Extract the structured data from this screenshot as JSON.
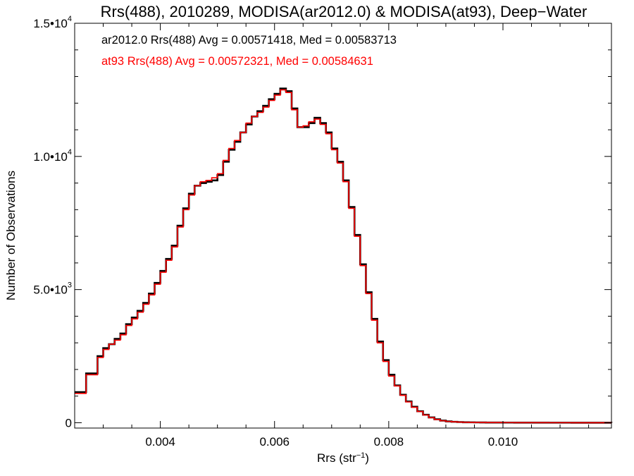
{
  "chart_data": {
    "type": "line",
    "step": true,
    "title": "Rrs(488), 2010289, MODISA(ar2012.0) & MODISA(at93), Deep−Water",
    "xlabel_main": "Rrs (str",
    "xlabel_sup": "−1",
    "xlabel_end": ")",
    "ylabel": "Number of Observations",
    "xlim": [
      0.0025,
      0.0119
    ],
    "ylim": [
      -200,
      15000
    ],
    "x_ticks": [
      {
        "value": 0.004,
        "label": "0.004"
      },
      {
        "value": 0.006,
        "label": "0.006"
      },
      {
        "value": 0.008,
        "label": "0.008"
      },
      {
        "value": 0.01,
        "label": "0.010"
      }
    ],
    "y_ticks": [
      {
        "value": 0,
        "mant": "0",
        "exp": ""
      },
      {
        "value": 5000,
        "mant": "5.0•10",
        "exp": "3"
      },
      {
        "value": 10000,
        "mant": "1.0•10",
        "exp": "4"
      },
      {
        "value": 15000,
        "mant": "1.5•10",
        "exp": "4"
      }
    ],
    "annotations": [
      {
        "text": "ar2012.0 Rrs(488) Avg = 0.00571418, Med = 0.00583713",
        "color": "#000000"
      },
      {
        "text": "at93 Rrs(488) Avg = 0.00572321, Med = 0.00584631",
        "color": "#ff0000"
      }
    ],
    "series": [
      {
        "name": "ar2012.0",
        "color": "#000000",
        "x": [
          0.0025,
          0.0027,
          0.0029,
          0.003,
          0.0031,
          0.0032,
          0.0033,
          0.0034,
          0.0035,
          0.0036,
          0.0037,
          0.0038,
          0.0039,
          0.004,
          0.0041,
          0.0042,
          0.0043,
          0.0044,
          0.0045,
          0.0046,
          0.0047,
          0.0048,
          0.0049,
          0.005,
          0.0051,
          0.0052,
          0.0053,
          0.0054,
          0.0055,
          0.0056,
          0.0057,
          0.0058,
          0.0059,
          0.006,
          0.0061,
          0.0062,
          0.0063,
          0.0064,
          0.0065,
          0.0066,
          0.0067,
          0.0068,
          0.0069,
          0.007,
          0.0071,
          0.0072,
          0.0073,
          0.0074,
          0.0075,
          0.0076,
          0.0077,
          0.0078,
          0.0079,
          0.008,
          0.0081,
          0.0082,
          0.0083,
          0.0084,
          0.0085,
          0.0086,
          0.0087,
          0.0088,
          0.0089,
          0.009,
          0.0091,
          0.0092,
          0.0093,
          0.0094,
          0.0095,
          0.0096,
          0.0097,
          0.0098,
          0.01,
          0.0102,
          0.0104,
          0.0106,
          0.0108,
          0.011,
          0.0112,
          0.0114,
          0.0116,
          0.0118,
          0.0119
        ],
        "y": [
          1150,
          1850,
          2500,
          2800,
          2950,
          3150,
          3350,
          3700,
          3950,
          4200,
          4500,
          4850,
          5250,
          5700,
          6150,
          6650,
          7400,
          8050,
          8600,
          8900,
          9000,
          9050,
          9100,
          9300,
          9800,
          10250,
          10550,
          10900,
          11200,
          11500,
          11700,
          11900,
          12150,
          12350,
          12550,
          12450,
          11800,
          11100,
          11100,
          11250,
          11450,
          11250,
          10900,
          10300,
          9800,
          9100,
          8100,
          7050,
          5950,
          4900,
          3900,
          3050,
          2350,
          1800,
          1400,
          1050,
          800,
          600,
          430,
          300,
          200,
          130,
          80,
          50,
          35,
          25,
          18,
          15,
          12,
          10,
          8,
          6,
          5,
          4,
          3,
          3,
          2,
          2,
          1,
          1,
          1,
          1,
          0
        ]
      },
      {
        "name": "at93",
        "color": "#ff0000",
        "x": [
          0.0025,
          0.0027,
          0.0029,
          0.003,
          0.0031,
          0.0032,
          0.0033,
          0.0034,
          0.0035,
          0.0036,
          0.0037,
          0.0038,
          0.0039,
          0.004,
          0.0041,
          0.0042,
          0.0043,
          0.0044,
          0.0045,
          0.0046,
          0.0047,
          0.0048,
          0.0049,
          0.005,
          0.0051,
          0.0052,
          0.0053,
          0.0054,
          0.0055,
          0.0056,
          0.0057,
          0.0058,
          0.0059,
          0.006,
          0.0061,
          0.0062,
          0.0063,
          0.0064,
          0.0065,
          0.0066,
          0.0067,
          0.0068,
          0.0069,
          0.007,
          0.0071,
          0.0072,
          0.0073,
          0.0074,
          0.0075,
          0.0076,
          0.0077,
          0.0078,
          0.0079,
          0.008,
          0.0081,
          0.0082,
          0.0083,
          0.0084,
          0.0085,
          0.0086,
          0.0087,
          0.0088,
          0.0089,
          0.009,
          0.0091,
          0.0092,
          0.0093,
          0.0094,
          0.0095,
          0.0096,
          0.0097,
          0.0098,
          0.01,
          0.0102,
          0.0104,
          0.0106,
          0.0108,
          0.011,
          0.0112,
          0.0114,
          0.0116,
          0.0118,
          0.0119
        ],
        "y": [
          1100,
          1800,
          2450,
          2750,
          2950,
          3100,
          3300,
          3650,
          3900,
          4150,
          4450,
          4800,
          5200,
          5650,
          6100,
          6600,
          7350,
          8000,
          8550,
          8900,
          9050,
          9100,
          9200,
          9350,
          9850,
          10300,
          10600,
          10900,
          11250,
          11500,
          11650,
          11850,
          12100,
          12300,
          12500,
          12400,
          11750,
          11100,
          11150,
          11300,
          11400,
          11200,
          10850,
          10250,
          9750,
          9050,
          8050,
          7000,
          5900,
          4850,
          3850,
          3000,
          2300,
          1750,
          1380,
          1030,
          780,
          580,
          420,
          290,
          190,
          120,
          75,
          48,
          33,
          24,
          17,
          14,
          11,
          9,
          7,
          6,
          5,
          4,
          3,
          3,
          2,
          2,
          1,
          1,
          1,
          1,
          0
        ]
      }
    ]
  }
}
